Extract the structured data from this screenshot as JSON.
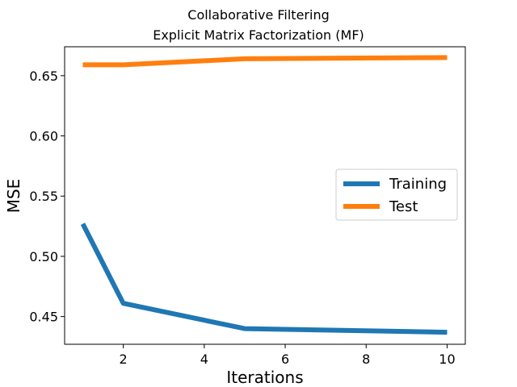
{
  "chart_data": {
    "type": "line",
    "title": "Collaborative Filtering",
    "subtitle": "Explicit Matrix Factorization (MF)",
    "xlabel": "Iterations",
    "ylabel": "MSE",
    "xlim": [
      0.55,
      10.45
    ],
    "ylim": [
      0.427,
      0.674
    ],
    "xticks": [
      2,
      4,
      6,
      8,
      10
    ],
    "xtick_labels": [
      "2",
      "4",
      "6",
      "8",
      "10"
    ],
    "yticks": [
      0.45,
      0.5,
      0.55,
      0.6,
      0.65
    ],
    "ytick_labels": [
      "0.45",
      "0.50",
      "0.55",
      "0.60",
      "0.65"
    ],
    "grid": false,
    "legend_position": "center-right",
    "x": [
      1,
      2,
      5,
      10
    ],
    "series": [
      {
        "name": "Training",
        "color": "#1f77b4",
        "values": [
          0.527,
          0.461,
          0.44,
          0.437
        ]
      },
      {
        "name": "Test",
        "color": "#ff7f0e",
        "values": [
          0.659,
          0.659,
          0.664,
          0.665
        ]
      }
    ]
  }
}
